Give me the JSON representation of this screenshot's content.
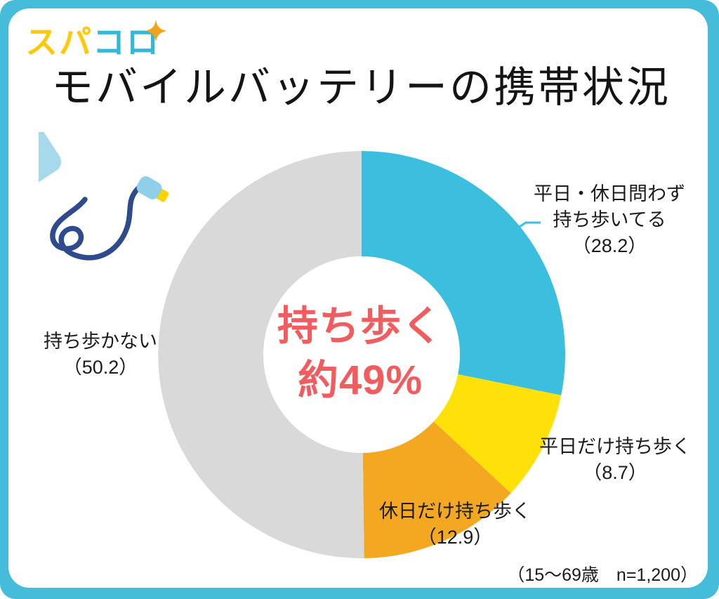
{
  "brand": {
    "logo_text_yellow": "スパ",
    "logo_text_cyan": "コロ",
    "sparkle_icon": "four-point-star"
  },
  "header": {
    "title": "モバイルバッテリーの携帯状況"
  },
  "chart_data": {
    "type": "pie",
    "donut": true,
    "title": "モバイルバッテリーの携帯状況",
    "unit": "%",
    "start_angle_deg": 0,
    "direction": "clockwise",
    "grid": false,
    "legend_position": "labels-around-chart",
    "segments": [
      {
        "label": "平日・休日問わず持ち歩いてる",
        "value": 28.2,
        "color": "#3CBEDF"
      },
      {
        "label": "平日だけ持ち歩く",
        "value": 8.7,
        "color": "#FFE10A"
      },
      {
        "label": "休日だけ持ち歩く",
        "value": 12.9,
        "color": "#F4A821"
      },
      {
        "label": "持ち歩かない",
        "value": 50.2,
        "color": "#D9D9D9"
      }
    ],
    "center_label": [
      "持ち歩く",
      "約49%"
    ],
    "note": "（15〜69歳　n=1,200）"
  },
  "labels": {
    "carry_both": [
      "平日・休日問わず",
      "持ち歩いてる",
      "（28.2）"
    ],
    "weekday_only": [
      "平日だけ持ち歩く",
      "（8.7）"
    ],
    "holiday_only": [
      "休日だけ持ち歩く",
      "（12.9）"
    ],
    "no_carry": [
      "持ち歩かない",
      "（50.2）"
    ]
  },
  "colors": {
    "frame": "#45BCD9",
    "logo_yellow": "#FFC90A",
    "logo_cyan": "#35B7DA",
    "sparkle": "#F2A31B",
    "center_text": "#F15C5F",
    "leader_line": "#3CBEDF",
    "text": "#1B1B1B"
  }
}
